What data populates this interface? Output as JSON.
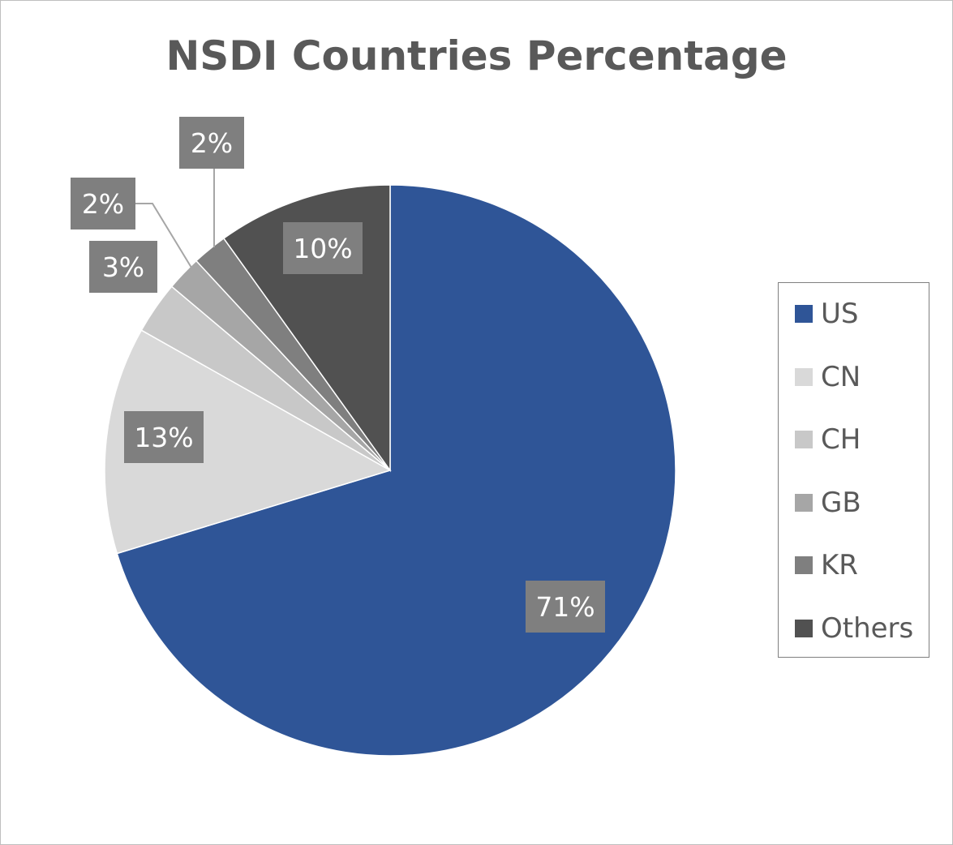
{
  "chart_data": {
    "type": "pie",
    "title": "NSDI Countries Percentage",
    "categories": [
      "US",
      "CN",
      "CH",
      "GB",
      "KR",
      "Others"
    ],
    "values": [
      71,
      13,
      3,
      2,
      2,
      10
    ],
    "labels": [
      "71%",
      "13%",
      "3%",
      "2%",
      "2%",
      "10%"
    ],
    "colors": [
      "#2f5597",
      "#d9d9d9",
      "#c8c8c8",
      "#a6a6a6",
      "#7f7f7f",
      "#515151"
    ],
    "legend_position": "right",
    "label_box_color": "#7f7f7f"
  }
}
